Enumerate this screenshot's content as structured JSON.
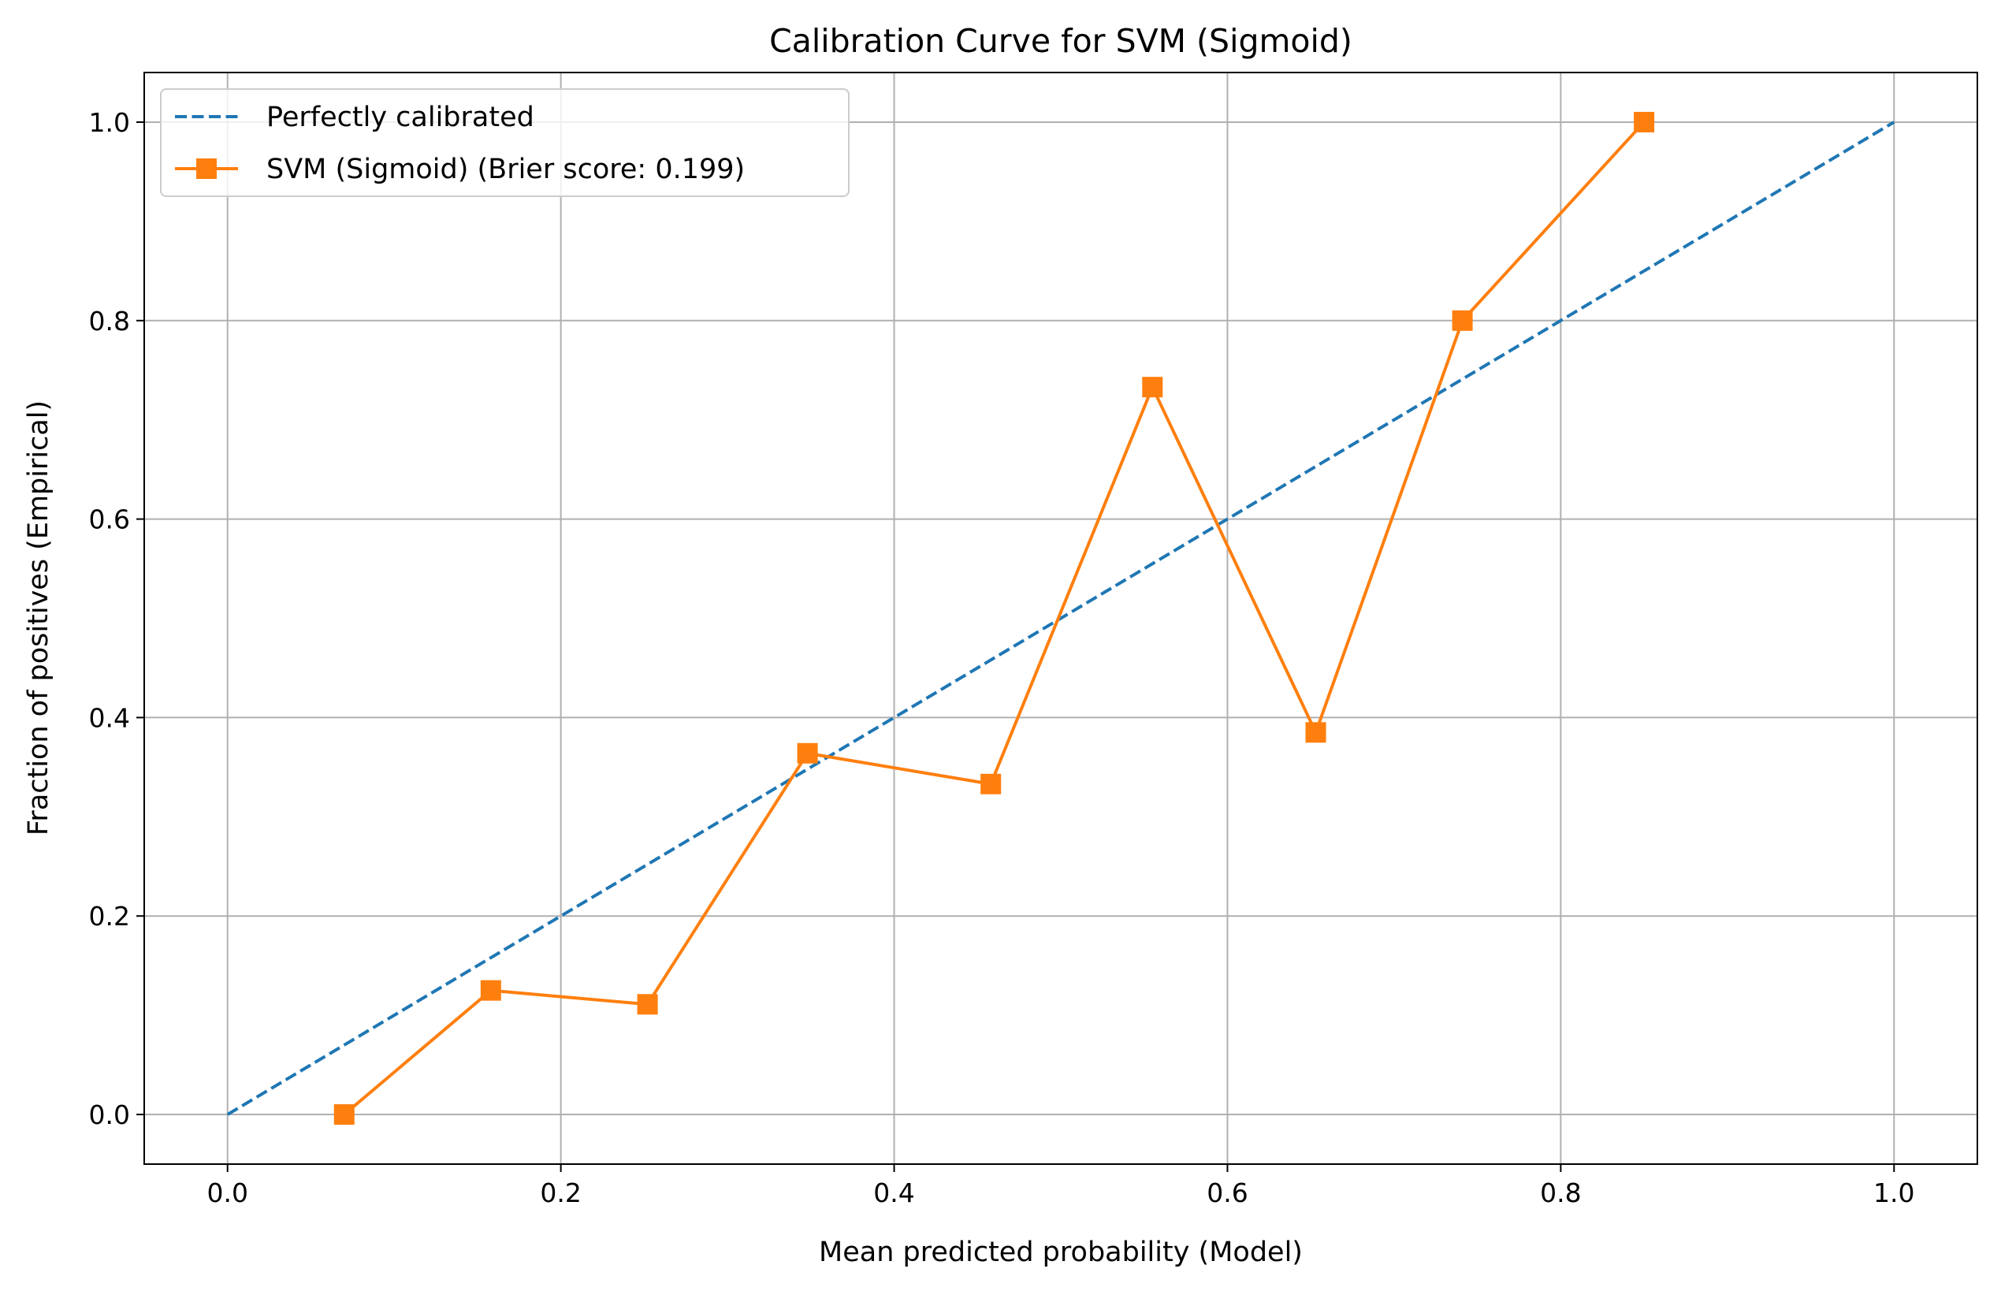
{
  "chart_data": {
    "type": "line",
    "title": "Calibration Curve for SVM (Sigmoid)",
    "xlabel": "Mean predicted probability (Model)",
    "ylabel": "Fraction of positives (Empirical)",
    "xlim": [
      -0.05,
      1.05
    ],
    "ylim": [
      -0.05,
      1.05
    ],
    "xticks": [
      "0.0",
      "0.2",
      "0.4",
      "0.6",
      "0.8",
      "1.0"
    ],
    "yticks": [
      "0.0",
      "0.2",
      "0.4",
      "0.6",
      "0.8",
      "1.0"
    ],
    "grid": true,
    "legend_position": "top-left",
    "series": [
      {
        "name": "Perfectly calibrated",
        "style": "dashed",
        "color": "#1f77b4",
        "x": [
          0.0,
          1.0
        ],
        "y": [
          0.0,
          1.0
        ]
      },
      {
        "name": "SVM (Sigmoid) (Brier score: 0.199)",
        "style": "solid",
        "marker": "square",
        "color": "#ff7f0e",
        "x": [
          0.07,
          0.158,
          0.252,
          0.348,
          0.458,
          0.555,
          0.653,
          0.741,
          0.85
        ],
        "y": [
          0.0,
          0.125,
          0.111,
          0.364,
          0.333,
          0.733,
          0.385,
          0.8,
          1.0
        ]
      }
    ]
  }
}
